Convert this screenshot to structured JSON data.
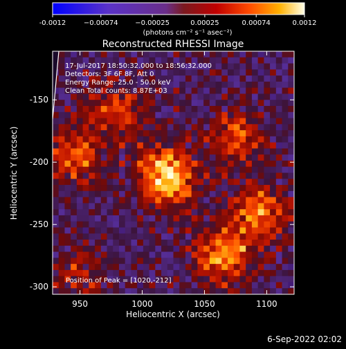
{
  "colorbar": {
    "ticks": [
      {
        "value": -0.0012,
        "label": "-0.0012"
      },
      {
        "value": -0.00074,
        "label": "−0.00074"
      },
      {
        "value": -0.00025,
        "label": "−0.00025"
      },
      {
        "value": 0.00025,
        "label": "0.00025"
      },
      {
        "value": 0.00074,
        "label": "0.00074"
      },
      {
        "value": 0.0012,
        "label": "0.0012"
      }
    ],
    "min": -0.0012,
    "max": 0.0012,
    "unit_label": "(photons cm⁻² s⁻¹ asec⁻²)"
  },
  "chart_data": {
    "type": "heatmap",
    "title": "Reconstructed RHESSI Image",
    "xlabel": "Heliocentric X (arcsec)",
    "ylabel": "Heliocentric Y (arcsec)",
    "xlim": [
      928,
      1122
    ],
    "ylim": [
      -306,
      -111
    ],
    "xticks": [
      950,
      1000,
      1050,
      1100
    ],
    "yticks": [
      -150,
      -200,
      -250,
      -300
    ],
    "peak": [
      1020,
      -212
    ],
    "sources": [
      {
        "x": 1020,
        "y": -212,
        "amp": 1.0
      },
      {
        "x": 1065,
        "y": -275,
        "amp": 0.75
      },
      {
        "x": 1095,
        "y": -240,
        "amp": 0.65
      },
      {
        "x": 1075,
        "y": -180,
        "amp": 0.55
      },
      {
        "x": 945,
        "y": -195,
        "amp": 0.6
      },
      {
        "x": 980,
        "y": -158,
        "amp": 0.5
      },
      {
        "x": 950,
        "y": -290,
        "amp": 0.35
      }
    ],
    "annotations": [
      "17-Jul-2017 18:50:32.000 to 18:56:32.000",
      "Detectors: 3F 6F 8F, Att 0",
      "Energy Range: 25.0 - 50.0 keV",
      "Clean    Total counts: 8.87E+03"
    ],
    "peak_label": "Position of Peak = [1020,-212]"
  },
  "timestamp": "6-Sep-2022 02:02"
}
